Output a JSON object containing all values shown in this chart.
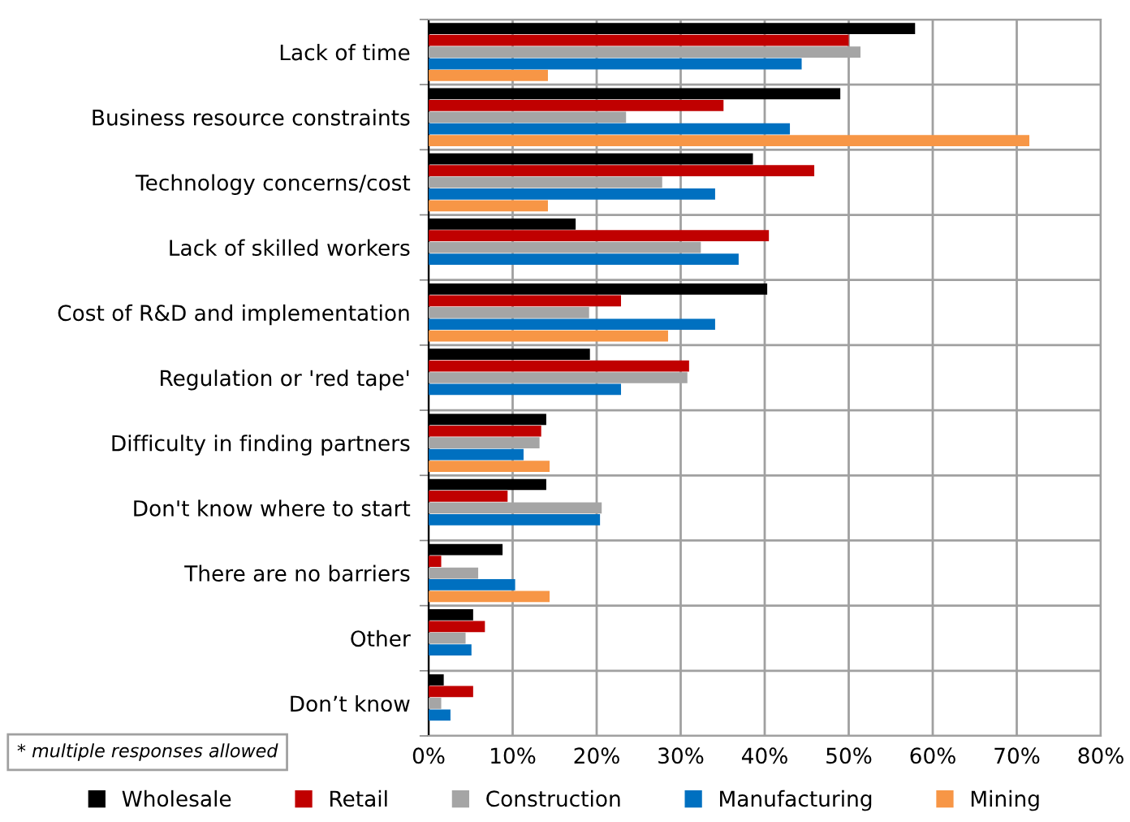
{
  "chart_data": {
    "type": "bar",
    "orientation": "horizontal",
    "categories": [
      "Lack of time",
      "Business resource constraints",
      "Technology concerns/cost",
      "Lack of skilled workers",
      "Cost of R&D and implementation",
      "Regulation or 'red tape'",
      "Difficulty in finding partners",
      "Don't know where to start",
      "There are no barriers",
      "Other",
      "Don’t know"
    ],
    "series": [
      {
        "name": "Wholesale",
        "color": "#000000",
        "values": [
          57.9,
          49.0,
          38.6,
          17.5,
          40.3,
          19.2,
          14.0,
          14.0,
          8.8,
          5.3,
          1.8
        ]
      },
      {
        "name": "Retail",
        "color": "#c00000",
        "values": [
          50.0,
          35.1,
          45.9,
          40.5,
          22.9,
          31.0,
          13.4,
          9.4,
          1.5,
          6.7,
          5.3
        ]
      },
      {
        "name": "Construction",
        "color": "#a5a5a5",
        "values": [
          51.4,
          23.5,
          27.8,
          32.4,
          19.1,
          30.8,
          13.2,
          20.6,
          5.9,
          4.4,
          1.5
        ]
      },
      {
        "name": "Manufacturing",
        "color": "#0070c0",
        "values": [
          44.4,
          43.0,
          34.1,
          36.9,
          34.1,
          22.9,
          11.3,
          20.4,
          10.3,
          5.1,
          2.6
        ]
      },
      {
        "name": "Mining",
        "color": "#f79646",
        "values": [
          14.2,
          71.5,
          14.2,
          null,
          28.5,
          null,
          14.4,
          null,
          14.4,
          null,
          null
        ]
      }
    ],
    "xlim": [
      0,
      80
    ],
    "xticks": [
      {
        "value": 0,
        "label": "0%"
      },
      {
        "value": 10,
        "label": "10%"
      },
      {
        "value": 20,
        "label": "20%"
      },
      {
        "value": 30,
        "label": "30%"
      },
      {
        "value": 40,
        "label": "40%"
      },
      {
        "value": 50,
        "label": "50%"
      },
      {
        "value": 60,
        "label": "60%"
      },
      {
        "value": 70,
        "label": "70%"
      },
      {
        "value": 80,
        "label": "80%"
      }
    ],
    "grid": true,
    "legend": "bottom",
    "annotations": [
      "* multiple responses allowed"
    ]
  }
}
